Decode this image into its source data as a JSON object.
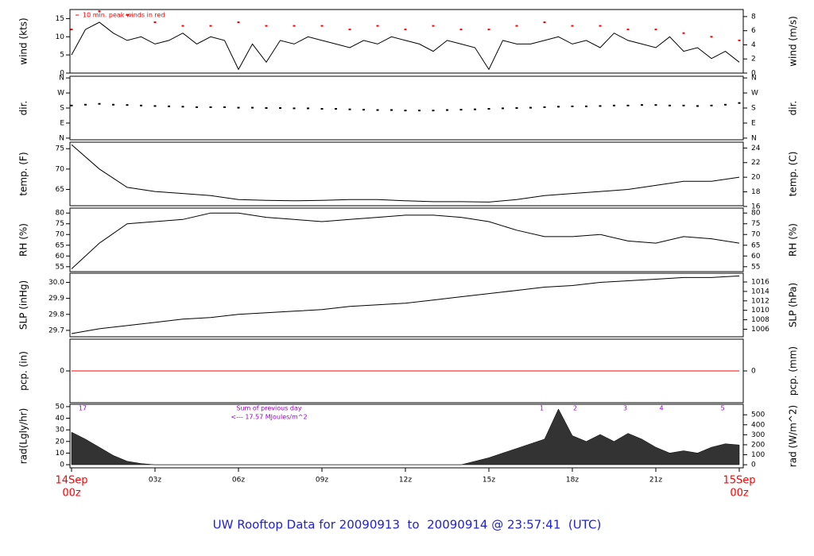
{
  "chart_data": [
    {
      "type": "line",
      "ylabel": "wind (kts)",
      "y2label": "wind (m/s)",
      "xlim": [
        0,
        24
      ],
      "ylim": [
        0,
        17.5
      ],
      "yticks": [
        0,
        5,
        10,
        15
      ],
      "y2lim": [
        0,
        9.0
      ],
      "y2ticks": [
        0,
        2,
        4,
        6,
        8
      ],
      "annotation": "10 min. peak winds in red",
      "annotation_color": "#ff0000",
      "series": [
        {
          "name": "wind",
          "type": "line",
          "color": "#000000",
          "x": [
            0,
            0.5,
            1,
            1.5,
            2,
            2.5,
            3,
            3.5,
            4,
            4.5,
            5,
            5.5,
            6,
            6.5,
            7,
            7.5,
            8,
            8.5,
            9,
            9.5,
            10,
            10.5,
            11,
            11.5,
            12,
            12.5,
            13,
            13.5,
            14,
            14.5,
            15,
            15.5,
            16,
            16.5,
            17,
            17.5,
            18,
            18.5,
            19,
            19.5,
            20,
            20.5,
            21,
            21.5,
            22,
            22.5,
            23,
            23.5,
            24
          ],
          "values": [
            5,
            12,
            14,
            11,
            9,
            10,
            8,
            9,
            11,
            8,
            10,
            9,
            1,
            8,
            3,
            9,
            8,
            10,
            9,
            8,
            7,
            9,
            8,
            10,
            9,
            8,
            6,
            9,
            8,
            7,
            1,
            9,
            8,
            8,
            9,
            10,
            8,
            9,
            7,
            11,
            9,
            8,
            7,
            10,
            6,
            7,
            4,
            6,
            3
          ]
        },
        {
          "name": "peak",
          "type": "scatter",
          "color": "#ff0000",
          "x": [
            0,
            1,
            2,
            3,
            4,
            5,
            6,
            7,
            8,
            9,
            10,
            11,
            12,
            13,
            14,
            15,
            16,
            17,
            18,
            19,
            20,
            21,
            22,
            23,
            24
          ],
          "values": [
            12,
            17,
            16,
            14,
            13,
            13,
            14,
            13,
            13,
            13,
            12,
            13,
            12,
            13,
            12,
            12,
            13,
            14,
            13,
            13,
            12,
            12,
            11,
            10,
            9
          ]
        }
      ]
    },
    {
      "type": "scatter",
      "ylabel": "dir.",
      "y2label": "dir.",
      "xlim": [
        0,
        24
      ],
      "ylim": [
        -10,
        370
      ],
      "yticks": [
        {
          "value": 0,
          "label": "N"
        },
        {
          "value": 90,
          "label": "E"
        },
        {
          "value": 180,
          "label": "S"
        },
        {
          "value": 270,
          "label": "W"
        },
        {
          "value": 360,
          "label": "N"
        }
      ],
      "y2lim": [
        -10,
        370
      ],
      "y2ticks": [
        {
          "value": 0,
          "label": "N"
        },
        {
          "value": 90,
          "label": "E"
        },
        {
          "value": 180,
          "label": "S"
        },
        {
          "value": 270,
          "label": "W"
        },
        {
          "value": 360,
          "label": "N"
        }
      ],
      "series": [
        {
          "name": "direction",
          "type": "scatter",
          "color": "#000000",
          "x": [
            0,
            0.5,
            1,
            1.5,
            2,
            2.5,
            3,
            3.5,
            4,
            4.5,
            5,
            5.5,
            6,
            6.5,
            7,
            7.5,
            8,
            8.5,
            9,
            9.5,
            10,
            10.5,
            11,
            11.5,
            12,
            12.5,
            13,
            13.5,
            14,
            14.5,
            15,
            15.5,
            16,
            16.5,
            17,
            17.5,
            18,
            18.5,
            19,
            19.5,
            20,
            20.5,
            21,
            21.5,
            22,
            22.5,
            23,
            23.5,
            24
          ],
          "values": [
            195,
            200,
            205,
            200,
            198,
            195,
            192,
            190,
            188,
            185,
            185,
            185,
            182,
            182,
            180,
            180,
            178,
            178,
            175,
            175,
            172,
            170,
            168,
            168,
            165,
            165,
            165,
            168,
            170,
            172,
            175,
            178,
            180,
            182,
            185,
            188,
            190,
            190,
            192,
            195,
            195,
            198,
            198,
            195,
            195,
            192,
            195,
            200,
            210
          ]
        }
      ]
    },
    {
      "type": "line",
      "ylabel": "temp. (F)",
      "y2label": "temp. (C)",
      "xlim": [
        0,
        24
      ],
      "ylim": [
        61,
        76.6
      ],
      "yticks": [
        65,
        70,
        75
      ],
      "y2lim": [
        16.1,
        24.8
      ],
      "y2ticks": [
        16,
        18,
        20,
        22,
        24
      ],
      "series": [
        {
          "name": "temp",
          "type": "line",
          "color": "#000000",
          "x": [
            0,
            1,
            2,
            3,
            4,
            5,
            6,
            7,
            8,
            9,
            10,
            11,
            12,
            13,
            14,
            15,
            16,
            17,
            18,
            19,
            20,
            21,
            22,
            23,
            24
          ],
          "values": [
            76,
            70,
            65.5,
            64.5,
            64,
            63.5,
            62.5,
            62.3,
            62.2,
            62.3,
            62.5,
            62.5,
            62.2,
            62,
            62,
            61.9,
            62.5,
            63.5,
            64,
            64.5,
            65,
            66,
            67,
            67,
            68
          ]
        }
      ]
    },
    {
      "type": "line",
      "ylabel": "RH (%)",
      "y2label": "RH (%)",
      "xlim": [
        0,
        24
      ],
      "ylim": [
        52.7,
        82.3
      ],
      "yticks": [
        55,
        60,
        65,
        70,
        75,
        80
      ],
      "y2lim": [
        52.7,
        82.3
      ],
      "y2ticks": [
        55,
        60,
        65,
        70,
        75,
        80
      ],
      "series": [
        {
          "name": "rh",
          "type": "line",
          "color": "#000000",
          "x": [
            0,
            1,
            2,
            3,
            4,
            5,
            6,
            7,
            8,
            9,
            10,
            11,
            12,
            13,
            14,
            15,
            16,
            17,
            18,
            19,
            20,
            21,
            22,
            23,
            24
          ],
          "values": [
            54,
            66,
            75,
            76,
            77,
            80,
            80,
            78,
            77,
            76,
            77,
            78,
            79,
            79,
            78,
            76,
            72,
            69,
            69,
            70,
            67,
            66,
            69,
            68,
            66
          ]
        }
      ]
    },
    {
      "type": "line",
      "ylabel": "SLP (inHg)",
      "y2label": "SLP (hPa)",
      "xlim": [
        0,
        24
      ],
      "ylim": [
        29.66,
        30.057
      ],
      "yticks": [
        29.7,
        29.8,
        29.9,
        {
          "value": 30,
          "label": "30.0"
        }
      ],
      "y2lim": [
        1004.4,
        1017.85
      ],
      "y2ticks": [
        1006,
        1008,
        1010,
        1012,
        1014,
        1016
      ],
      "series": [
        {
          "name": "slp",
          "type": "line",
          "color": "#000000",
          "x": [
            0,
            1,
            2,
            3,
            4,
            5,
            6,
            7,
            8,
            9,
            10,
            11,
            12,
            13,
            14,
            15,
            16,
            17,
            18,
            19,
            20,
            21,
            22,
            23,
            24
          ],
          "values": [
            29.68,
            29.71,
            29.73,
            29.75,
            29.77,
            29.78,
            29.8,
            29.81,
            29.82,
            29.83,
            29.85,
            29.86,
            29.87,
            29.89,
            29.91,
            29.93,
            29.95,
            29.97,
            29.98,
            30.0,
            30.01,
            30.02,
            30.03,
            30.03,
            30.04
          ]
        }
      ]
    },
    {
      "type": "line",
      "ylabel": "pcp. (in)",
      "y2label": "pcp. (mm)",
      "xlim": [
        0,
        24
      ],
      "ylim": [
        -1,
        1
      ],
      "yticks": [
        0
      ],
      "y2lim": [
        -25.4,
        25.4
      ],
      "y2ticks": [
        0
      ],
      "series": [
        {
          "name": "pcp",
          "type": "line",
          "color": "#ff0000",
          "x": [
            0,
            24
          ],
          "values": [
            0,
            0
          ]
        }
      ]
    },
    {
      "type": "area",
      "ylabel": "rad(Lgly/hr)",
      "y2label": "rad (W/m^2)",
      "xlim": [
        0,
        24
      ],
      "ylim": [
        -2.7,
        52
      ],
      "yticks": [
        0,
        10,
        20,
        30,
        40,
        50
      ],
      "y2lim": [
        -31,
        605
      ],
      "y2ticks": [
        0,
        100,
        200,
        300,
        400,
        500
      ],
      "xticks": [
        {
          "value": 0,
          "label": "14Sep",
          "sublabel": "00z"
        },
        {
          "value": 3,
          "label": "03z"
        },
        {
          "value": 6,
          "label": "06z"
        },
        {
          "value": 9,
          "label": "09z"
        },
        {
          "value": 12,
          "label": "12z"
        },
        {
          "value": 15,
          "label": "15z"
        },
        {
          "value": 18,
          "label": "18z"
        },
        {
          "value": 21,
          "label": "21z"
        },
        {
          "value": 24,
          "label": "15Sep",
          "sublabel": "00z"
        }
      ],
      "date_color": "#ff0000",
      "annotation_color": "#9900cc",
      "annotations": [
        {
          "text": "17",
          "x": 0.4,
          "y": 48.5
        },
        {
          "text": "Sum of previous day",
          "x": 7.1,
          "y": 48.5
        },
        {
          "text": "<--- 17.57 MJoules/m^2",
          "x": 7.1,
          "y": 41
        },
        {
          "text": "1",
          "x": 16.9,
          "y": 48.5
        },
        {
          "text": "2",
          "x": 18.1,
          "y": 48.5
        },
        {
          "text": "3",
          "x": 19.9,
          "y": 48.5
        },
        {
          "text": "4",
          "x": 21.2,
          "y": 48.5
        },
        {
          "text": "5",
          "x": 23.4,
          "y": 48.5
        }
      ],
      "series": [
        {
          "name": "rad",
          "type": "area",
          "color": "#333333",
          "x": [
            0,
            0.5,
            1,
            1.5,
            2,
            2.5,
            3,
            3.5,
            4,
            4.5,
            5,
            5.5,
            6,
            6.5,
            7,
            7.5,
            8,
            8.5,
            9,
            9.5,
            10,
            10.5,
            11,
            11.5,
            12,
            12.5,
            13,
            13.5,
            14,
            14.5,
            15,
            15.5,
            16,
            16.5,
            17,
            17.5,
            18,
            18.5,
            19,
            19.5,
            20,
            20.5,
            21,
            21.5,
            22,
            22.5,
            23,
            23.5,
            24
          ],
          "values": [
            28,
            22,
            15,
            8,
            3,
            1,
            0,
            0,
            0,
            0,
            0,
            0,
            0,
            0,
            0,
            0,
            0,
            0,
            0,
            0,
            0,
            0,
            0,
            0,
            0,
            0,
            0,
            0,
            0,
            3,
            6,
            10,
            14,
            18,
            22,
            48,
            25,
            20,
            26,
            20,
            27,
            22,
            15,
            10,
            12,
            10,
            15,
            18,
            17
          ]
        }
      ]
    }
  ],
  "footer": {
    "text": "UW Rooftop Data for 20090913  to  20090914 @ 23:57:41  (UTC)",
    "color": "#2222cc"
  }
}
